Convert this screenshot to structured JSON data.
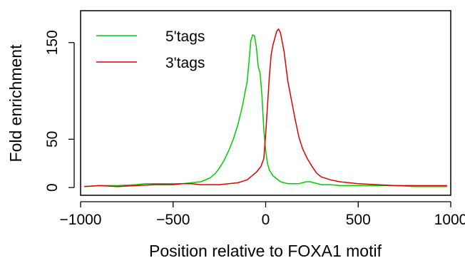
{
  "chart_data": {
    "type": "line",
    "title": "",
    "xlabel": "Position relative to FOXA1 motif",
    "ylabel": "Fold enrichment",
    "xlim": [
      -1000,
      1000
    ],
    "ylim": [
      -8,
      183
    ],
    "grid": false,
    "legend_position": "top-left",
    "x_ticks": [
      -1000,
      -500,
      0,
      500,
      1000
    ],
    "x_tick_labels": [
      "−1000",
      "−500",
      "0",
      "500",
      "1000"
    ],
    "y_ticks": [
      0,
      50,
      150
    ],
    "y_tick_labels": [
      "0",
      "50",
      "150"
    ],
    "series": [
      {
        "name": "5'tags",
        "color": "#00cc00",
        "x": [
          -980,
          -900,
          -800,
          -700,
          -650,
          -600,
          -550,
          -500,
          -450,
          -400,
          -350,
          -300,
          -275,
          -250,
          -225,
          -200,
          -175,
          -150,
          -125,
          -100,
          -90,
          -80,
          -70,
          -60,
          -50,
          -40,
          -30,
          -20,
          -10,
          0,
          10,
          20,
          40,
          60,
          80,
          100,
          120,
          150,
          180,
          200,
          220,
          240,
          260,
          280,
          300,
          350,
          400,
          500,
          600,
          700,
          800,
          900,
          980
        ],
        "y": [
          1,
          2,
          2,
          3,
          4,
          4,
          4,
          4,
          4,
          5,
          6,
          10,
          14,
          20,
          28,
          38,
          50,
          65,
          85,
          110,
          130,
          152,
          158,
          157,
          145,
          125,
          118,
          95,
          60,
          38,
          25,
          18,
          12,
          9,
          6,
          5,
          4,
          4,
          4,
          5,
          6,
          6,
          5,
          4,
          3,
          3,
          2,
          2,
          2,
          2,
          1,
          1,
          1
        ]
      },
      {
        "name": "3'tags",
        "color": "#dd0000",
        "x": [
          -980,
          -900,
          -800,
          -700,
          -600,
          -500,
          -450,
          -400,
          -350,
          -300,
          -250,
          -200,
          -150,
          -100,
          -75,
          -50,
          -25,
          -10,
          0,
          10,
          20,
          30,
          40,
          50,
          60,
          70,
          80,
          90,
          100,
          110,
          120,
          140,
          160,
          180,
          200,
          225,
          250,
          275,
          300,
          350,
          400,
          450,
          500,
          600,
          700,
          800,
          900,
          980
        ],
        "y": [
          1,
          2,
          1,
          2,
          3,
          3,
          4,
          4,
          3,
          3,
          3,
          4,
          5,
          8,
          12,
          16,
          22,
          30,
          55,
          85,
          115,
          138,
          148,
          155,
          162,
          164,
          160,
          150,
          140,
          125,
          110,
          90,
          70,
          52,
          40,
          30,
          22,
          15,
          11,
          8,
          6,
          5,
          4,
          3,
          2,
          2,
          2,
          2
        ]
      }
    ]
  }
}
